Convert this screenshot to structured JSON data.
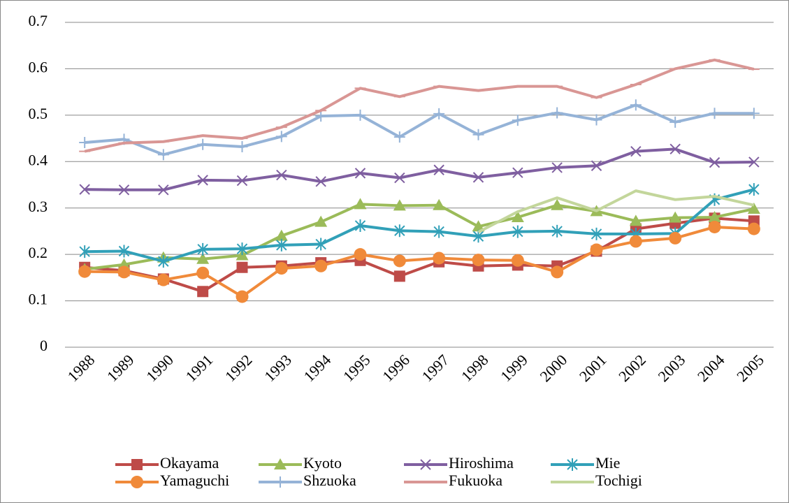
{
  "chart_data": {
    "type": "line",
    "categories": [
      "1988",
      "1989",
      "1990",
      "1991",
      "1992",
      "1993",
      "1994",
      "1995",
      "1996",
      "1997",
      "1998",
      "1999",
      "2000",
      "2001",
      "2002",
      "2003",
      "2004",
      "2005"
    ],
    "ylim": [
      0,
      0.7
    ],
    "yticks": [
      0,
      0.1,
      0.2,
      0.3,
      0.4,
      0.5,
      0.6,
      0.7
    ],
    "grid": true,
    "legend": "bottom",
    "series": [
      {
        "name": "Okayama",
        "color": "#be4b48",
        "marker": "square",
        "values": [
          0.172,
          0.165,
          0.147,
          0.12,
          0.172,
          0.175,
          0.182,
          0.187,
          0.153,
          0.184,
          0.175,
          0.177,
          0.175,
          0.207,
          0.255,
          0.267,
          0.278,
          0.272
        ]
      },
      {
        "name": "Kyoto",
        "color": "#9bbb59",
        "marker": "triangle",
        "values": [
          0.168,
          0.178,
          0.193,
          0.19,
          0.198,
          0.24,
          0.27,
          0.308,
          0.305,
          0.306,
          0.26,
          0.28,
          0.306,
          0.293,
          0.272,
          0.279,
          0.28,
          0.298
        ]
      },
      {
        "name": "Hiroshima",
        "color": "#7f5fa0",
        "marker": "x",
        "values": [
          0.34,
          0.339,
          0.339,
          0.36,
          0.359,
          0.371,
          0.357,
          0.375,
          0.365,
          0.382,
          0.366,
          0.376,
          0.387,
          0.391,
          0.422,
          0.427,
          0.398,
          0.399
        ]
      },
      {
        "name": "Mie",
        "color": "#31a0b8",
        "marker": "star",
        "values": [
          0.206,
          0.207,
          0.185,
          0.211,
          0.212,
          0.22,
          0.222,
          0.262,
          0.251,
          0.249,
          0.239,
          0.249,
          0.25,
          0.244,
          0.244,
          0.245,
          0.318,
          0.34
        ]
      },
      {
        "name": "Yamaguchi",
        "color": "#f08a3a",
        "marker": "circle",
        "values": [
          0.163,
          0.162,
          0.145,
          0.16,
          0.109,
          0.17,
          0.175,
          0.2,
          0.186,
          0.192,
          0.188,
          0.187,
          0.162,
          0.21,
          0.228,
          0.235,
          0.259,
          0.255
        ]
      },
      {
        "name": "Shzuoka",
        "color": "#95b3d7",
        "marker": "plus",
        "values": [
          0.441,
          0.448,
          0.415,
          0.437,
          0.432,
          0.454,
          0.498,
          0.5,
          0.453,
          0.503,
          0.458,
          0.489,
          0.505,
          0.49,
          0.522,
          0.485,
          0.504,
          0.504
        ]
      },
      {
        "name": "Fukuoka",
        "color": "#d99694",
        "marker": "dash",
        "values": [
          0.422,
          0.44,
          0.443,
          0.456,
          0.45,
          0.474,
          0.51,
          0.558,
          0.54,
          0.562,
          0.553,
          0.562,
          0.562,
          0.538,
          0.566,
          0.6,
          0.619,
          0.599
        ]
      },
      {
        "name": "Tochigi",
        "color": "#c3d69b",
        "marker": "none",
        "values": [
          null,
          null,
          null,
          null,
          null,
          null,
          null,
          null,
          null,
          null,
          0.248,
          0.292,
          0.322,
          0.294,
          0.337,
          0.318,
          0.325,
          0.306
        ]
      }
    ]
  }
}
